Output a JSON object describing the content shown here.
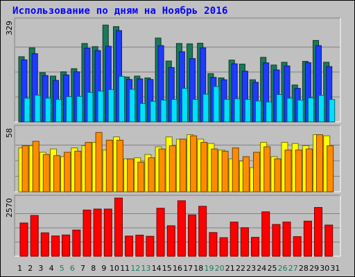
{
  "title": "Использование по дням на Ноябрь 2016",
  "chart_data": [
    {
      "type": "bar",
      "name": "hits/files/pages",
      "y_tick_label": "329",
      "ylim": [
        0,
        329
      ],
      "categories": [
        "1",
        "2",
        "3",
        "4",
        "5",
        "6",
        "7",
        "8",
        "9",
        "10",
        "11",
        "12",
        "13",
        "14",
        "15",
        "16",
        "17",
        "18",
        "19",
        "20",
        "21",
        "22",
        "23",
        "24",
        "25",
        "26",
        "27",
        "28",
        "29",
        "30",
        "31"
      ],
      "series": [
        {
          "key": "hits",
          "color": "#1a7a5a",
          "values": [
            212,
            241,
            160,
            149,
            163,
            173,
            255,
            245,
            315,
            310,
            146,
            149,
            143,
            273,
            198,
            255,
            254,
            256,
            157,
            143,
            201,
            188,
            137,
            210,
            185,
            194,
            120,
            197,
            265,
            194,
            0
          ]
        },
        {
          "key": "files",
          "color": "#1e3cff",
          "values": [
            202,
            222,
            151,
            135,
            153,
            163,
            240,
            232,
            246,
            297,
            138,
            140,
            138,
            248,
            177,
            228,
            206,
            241,
            145,
            137,
            189,
            165,
            129,
            192,
            169,
            182,
            109,
            193,
            248,
            180,
            0
          ]
        },
        {
          "key": "pages",
          "color": "#00e0ff",
          "values": [
            77,
            87,
            77,
            73,
            82,
            83,
            96,
            100,
            105,
            148,
            106,
            60,
            67,
            71,
            73,
            109,
            73,
            90,
            115,
            73,
            75,
            73,
            68,
            65,
            89,
            77,
            71,
            78,
            86,
            73,
            0
          ]
        }
      ]
    },
    {
      "type": "bar",
      "name": "visits/sites",
      "y_tick_label": "58",
      "ylim": [
        0,
        58
      ],
      "categories": [
        "1",
        "2",
        "3",
        "4",
        "5",
        "6",
        "7",
        "8",
        "9",
        "10",
        "11",
        "12",
        "13",
        "14",
        "15",
        "16",
        "17",
        "18",
        "19",
        "20",
        "21",
        "22",
        "23",
        "24",
        "25",
        "26",
        "27",
        "28",
        "29",
        "30",
        "31"
      ],
      "series": [
        {
          "key": "visits",
          "color": "#ffff00",
          "values": [
            40,
            42,
            36,
            39,
            32,
            40,
            42,
            45,
            38,
            50,
            30,
            31,
            34,
            41,
            50,
            48,
            52,
            48,
            44,
            38,
            30,
            28,
            22,
            45,
            32,
            45,
            44,
            42,
            52,
            51,
            0
          ]
        },
        {
          "key": "sites",
          "color": "#ff8c00",
          "values": [
            42,
            46,
            34,
            33,
            36,
            37,
            45,
            54,
            47,
            47,
            30,
            27,
            31,
            39,
            42,
            48,
            51,
            45,
            39,
            37,
            40,
            32,
            36,
            41,
            30,
            38,
            38,
            39,
            52,
            42,
            0
          ]
        }
      ]
    },
    {
      "type": "bar",
      "name": "kbytes",
      "y_tick_label": "2570",
      "ylim": [
        0,
        2570
      ],
      "categories": [
        "1",
        "2",
        "3",
        "4",
        "5",
        "6",
        "7",
        "8",
        "9",
        "10",
        "11",
        "12",
        "13",
        "14",
        "15",
        "16",
        "17",
        "18",
        "19",
        "20",
        "21",
        "22",
        "23",
        "24",
        "25",
        "26",
        "27",
        "28",
        "29",
        "30",
        "31"
      ],
      "series": [
        {
          "key": "kbytes",
          "color": "#ff0000",
          "values": [
            1468,
            1800,
            1035,
            895,
            939,
            1158,
            2040,
            2085,
            2085,
            2570,
            890,
            934,
            880,
            2120,
            1345,
            2450,
            1826,
            2205,
            1045,
            820,
            1508,
            1260,
            835,
            1960,
            1405,
            1510,
            865,
            1550,
            2155,
            1378,
            0
          ]
        }
      ]
    }
  ],
  "x_labels": [
    {
      "text": "1",
      "color": "#000000"
    },
    {
      "text": "2",
      "color": "#000000"
    },
    {
      "text": "3",
      "color": "#000000"
    },
    {
      "text": "4",
      "color": "#000000"
    },
    {
      "text": "5",
      "color": "#1a7a5a"
    },
    {
      "text": "6",
      "color": "#1a7a5a"
    },
    {
      "text": "7",
      "color": "#000000"
    },
    {
      "text": "8",
      "color": "#000000"
    },
    {
      "text": "9",
      "color": "#000000"
    },
    {
      "text": "10",
      "color": "#000000"
    },
    {
      "text": "11",
      "color": "#000000"
    },
    {
      "text": "12",
      "color": "#1a7a5a"
    },
    {
      "text": "13",
      "color": "#1a7a5a"
    },
    {
      "text": "14",
      "color": "#000000"
    },
    {
      "text": "15",
      "color": "#000000"
    },
    {
      "text": "16",
      "color": "#000000"
    },
    {
      "text": "17",
      "color": "#000000"
    },
    {
      "text": "18",
      "color": "#000000"
    },
    {
      "text": "19",
      "color": "#1a7a5a"
    },
    {
      "text": "20",
      "color": "#1a7a5a"
    },
    {
      "text": "21",
      "color": "#000000"
    },
    {
      "text": "22",
      "color": "#000000"
    },
    {
      "text": "23",
      "color": "#000000"
    },
    {
      "text": "24",
      "color": "#000000"
    },
    {
      "text": "25",
      "color": "#000000"
    },
    {
      "text": "26",
      "color": "#1a7a5a"
    },
    {
      "text": "27",
      "color": "#1a7a5a"
    },
    {
      "text": "28",
      "color": "#000000"
    },
    {
      "text": "29",
      "color": "#000000"
    },
    {
      "text": "30",
      "color": "#000000"
    },
    {
      "text": "31",
      "color": "#000000"
    }
  ]
}
